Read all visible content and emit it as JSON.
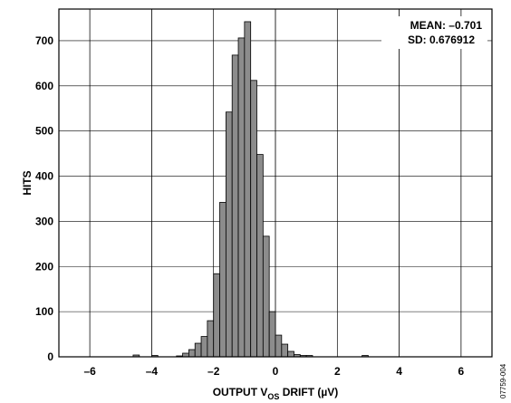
{
  "chart_data": {
    "type": "bar",
    "subtype": "histogram",
    "bin_width": 0.2,
    "bins": [
      {
        "x": -4.6,
        "y": 4
      },
      {
        "x": -4.0,
        "y": 3
      },
      {
        "x": -3.2,
        "y": 2
      },
      {
        "x": -3.0,
        "y": 8
      },
      {
        "x": -2.8,
        "y": 16
      },
      {
        "x": -2.6,
        "y": 30
      },
      {
        "x": -2.4,
        "y": 45
      },
      {
        "x": -2.2,
        "y": 80
      },
      {
        "x": -2.0,
        "y": 184
      },
      {
        "x": -1.8,
        "y": 342
      },
      {
        "x": -1.6,
        "y": 542
      },
      {
        "x": -1.4,
        "y": 668
      },
      {
        "x": -1.2,
        "y": 706
      },
      {
        "x": -1.0,
        "y": 742
      },
      {
        "x": -0.8,
        "y": 612
      },
      {
        "x": -0.6,
        "y": 448
      },
      {
        "x": -0.4,
        "y": 267
      },
      {
        "x": -0.2,
        "y": 100
      },
      {
        "x": 0.0,
        "y": 48
      },
      {
        "x": 0.2,
        "y": 28
      },
      {
        "x": 0.4,
        "y": 12
      },
      {
        "x": 0.6,
        "y": 5
      },
      {
        "x": 0.8,
        "y": 3
      },
      {
        "x": 1.0,
        "y": 3
      },
      {
        "x": 2.8,
        "y": 3
      }
    ],
    "xlim": [
      -7,
      7
    ],
    "ylim": [
      0,
      770
    ],
    "x_ticks": [
      -6,
      -4,
      -2,
      0,
      2,
      4,
      6
    ],
    "x_tick_labels": [
      "–6",
      "–4",
      "–2",
      "0",
      "2",
      "4",
      "6"
    ],
    "y_ticks": [
      0,
      100,
      200,
      300,
      400,
      500,
      600,
      700
    ],
    "y_tick_labels": [
      "0",
      "100",
      "200",
      "300",
      "400",
      "500",
      "600",
      "700"
    ],
    "xlabel_main": "OUTPUT V",
    "xlabel_sub": "OS",
    "xlabel_tail": " DRIFT (µV)",
    "ylabel": "HITS",
    "annotation_mean": "MEAN: –0.701",
    "annotation_sd": "SD: 0.676912",
    "figure_id": "07759-004",
    "grid": true,
    "colors": {
      "bar": "#8c8c8c",
      "edge": "#000000",
      "background": "#ffffff"
    }
  }
}
